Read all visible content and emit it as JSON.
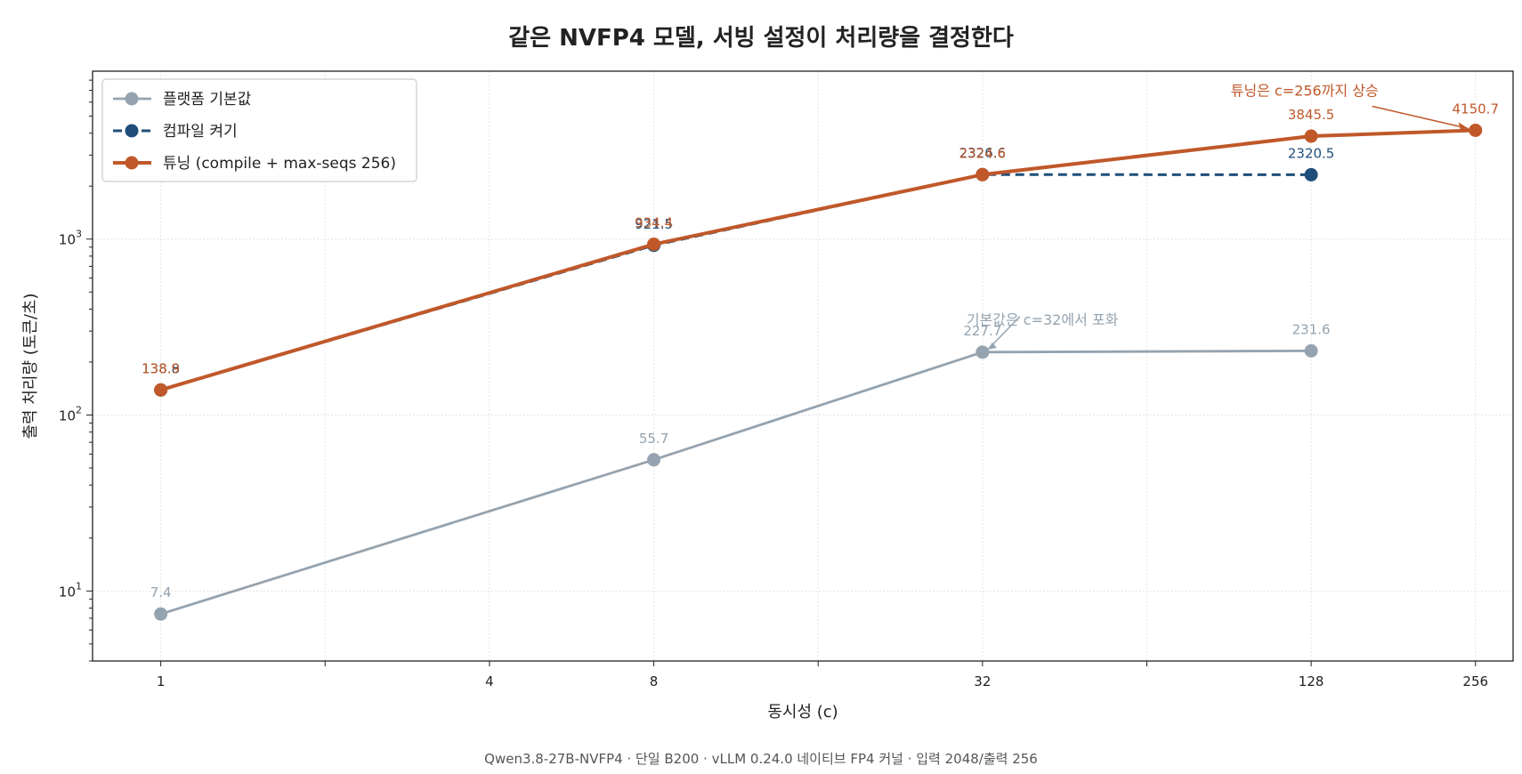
{
  "chart_data": {
    "type": "line",
    "title": "같은 NVFP4 모델, 서빙 설정이 처리량을 결정한다",
    "xlabel": "동시성 (c)",
    "ylabel": "출력 처리량 (토큰/초)",
    "xscale": "log2",
    "yscale": "log10",
    "xlim": [
      0.75,
      300
    ],
    "ylim": [
      4,
      9000
    ],
    "x_ticks": [
      1,
      4,
      8,
      32,
      128,
      256
    ],
    "x_minor_ticks": [
      2,
      16,
      64
    ],
    "y_ticks": [
      {
        "value": 10,
        "base": "10",
        "exp": "1"
      },
      {
        "value": 100,
        "base": "10",
        "exp": "2"
      },
      {
        "value": 1000,
        "base": "10",
        "exp": "3"
      }
    ],
    "grid": true,
    "legend_position": "top-left",
    "series": [
      {
        "name": "플랫폼 기본값",
        "color": "#94a3af",
        "style": "solid",
        "x": [
          1,
          8,
          32,
          128
        ],
        "y": [
          7.4,
          55.7,
          227.7,
          231.6
        ],
        "labels": [
          "7.4",
          "55.7",
          "227.7",
          "231.6"
        ]
      },
      {
        "name": "컴파일 켜기",
        "color": "#1f4e79",
        "style": "dashed",
        "x": [
          1,
          8,
          32,
          128
        ],
        "y": [
          138.8,
          921.5,
          2326.6,
          2320.5
        ],
        "labels": [
          "138.8",
          "921.5",
          "2326.6",
          "2320.5"
        ]
      },
      {
        "name": "튜닝 (compile + max-seqs 256)",
        "color": "#c0582a",
        "style": "solid",
        "x": [
          1,
          8,
          32,
          128,
          256
        ],
        "y": [
          138.9,
          934.4,
          2324.6,
          3845.5,
          4150.7
        ],
        "labels": [
          "138.9",
          "934.4",
          "2324.6",
          "3845.5",
          "4150.7"
        ]
      }
    ],
    "annotations": [
      {
        "text": "기본값은 c=32에서 포화",
        "x": 32,
        "y": 227.7,
        "color": "#94a3af"
      },
      {
        "text": "튜닝은 c=256까지 상승",
        "x": 256,
        "y": 4150.7,
        "color": "#c0582a"
      }
    ]
  },
  "footnote": "Qwen3.8-27B-NVFP4 · 단일 B200 · vLLM 0.24.0 네이티브 FP4 커널 · 입력 2048/출력 256"
}
